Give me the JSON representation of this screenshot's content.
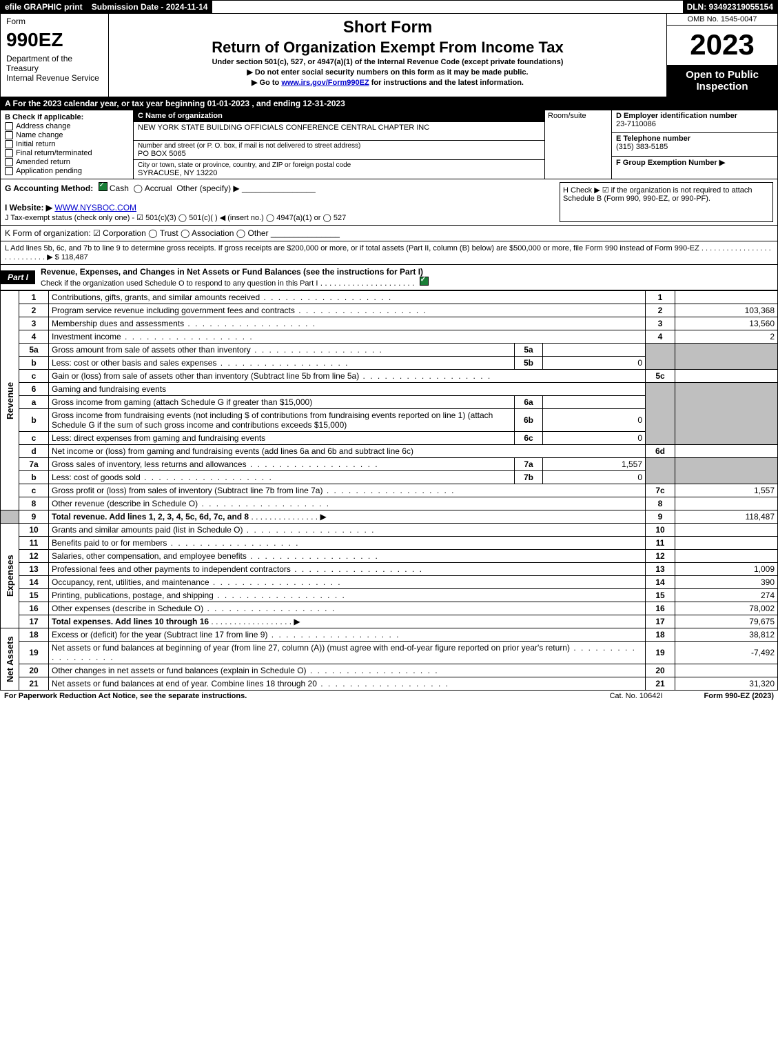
{
  "topbar": {
    "efile": "efile GRAPHIC print",
    "submission": "Submission Date - 2024-11-14",
    "dln": "DLN: 93492319055154"
  },
  "header": {
    "form_label": "Form",
    "form_number": "990EZ",
    "dept1": "Department of the Treasury",
    "dept2": "Internal Revenue Service",
    "short_form": "Short Form",
    "title": "Return of Organization Exempt From Income Tax",
    "sub1": "Under section 501(c), 527, or 4947(a)(1) of the Internal Revenue Code (except private foundations)",
    "sub2": "▶ Do not enter social security numbers on this form as it may be made public.",
    "sub3_prefix": "▶ Go to ",
    "sub3_link": "www.irs.gov/Form990EZ",
    "sub3_suffix": " for instructions and the latest information.",
    "omb": "OMB No. 1545-0047",
    "year": "2023",
    "open": "Open to Public Inspection"
  },
  "section_a": "A  For the 2023 calendar year, or tax year beginning 01-01-2023 , and ending 12-31-2023",
  "box_b": {
    "title": "B  Check if applicable:",
    "items": [
      "Address change",
      "Name change",
      "Initial return",
      "Final return/terminated",
      "Amended return",
      "Application pending"
    ]
  },
  "box_c": {
    "hdr": "C Name of organization",
    "name": "NEW YORK STATE BUILDING OFFICIALS CONFERENCE CENTRAL CHAPTER INC",
    "street_hdr": "Number and street (or P. O. box, if mail is not delivered to street address)",
    "street": "PO BOX 5065",
    "room_hdr": "Room/suite",
    "city_hdr": "City or town, state or province, country, and ZIP or foreign postal code",
    "city": "SYRACUSE, NY  13220"
  },
  "box_d": {
    "d_hdr": "D Employer identification number",
    "ein": "23-7110086",
    "e_hdr": "E Telephone number",
    "phone": "(315) 383-5185",
    "f_hdr": "F Group Exemption Number  ▶"
  },
  "g": {
    "label": "G Accounting Method:",
    "cash": "Cash",
    "accrual": "Accrual",
    "other": "Other (specify) ▶",
    "line": "________________"
  },
  "h": {
    "text": "H  Check ▶ ☑ if the organization is not required to attach Schedule B (Form 990, 990-EZ, or 990-PF)."
  },
  "i": {
    "label": "I Website: ▶",
    "value": "WWW.NYSBOC.COM"
  },
  "j": {
    "text": "J Tax-exempt status (check only one) - ☑ 501(c)(3) ◯ 501(c)(  ) ◀ (insert no.) ◯ 4947(a)(1) or ◯ 527"
  },
  "k": {
    "text": "K Form of organization:  ☑ Corporation  ◯ Trust  ◯ Association  ◯ Other",
    "line": "_______________"
  },
  "l": {
    "text": "L Add lines 5b, 6c, and 7b to line 9 to determine gross receipts. If gross receipts are $200,000 or more, or if total assets (Part II, column (B) below) are $500,000 or more, file Form 990 instead of Form 990-EZ  .  .  .  .  .  .  .  .  .  .  .  .  .  .  .  .  .  .  .  .  .  .  .  .  .  .  .  ▶ $ 118,487"
  },
  "part1": {
    "label": "Part I",
    "title": "Revenue, Expenses, and Changes in Net Assets or Fund Balances (see the instructions for Part I)",
    "check_text": "Check if the organization used Schedule O to respond to any question in this Part I"
  },
  "rev": {
    "side": "Revenue",
    "l1": "Contributions, gifts, grants, and similar amounts received",
    "l2": "Program service revenue including government fees and contracts",
    "v2": "103,368",
    "l3": "Membership dues and assessments",
    "v3": "13,560",
    "l4": "Investment income",
    "v4": "2",
    "l5a": "Gross amount from sale of assets other than inventory",
    "l5b": "Less: cost or other basis and sales expenses",
    "v5b": "0",
    "l5c": "Gain or (loss) from sale of assets other than inventory (Subtract line 5b from line 5a)",
    "l6": "Gaming and fundraising events",
    "l6a": "Gross income from gaming (attach Schedule G if greater than $15,000)",
    "l6b": "Gross income from fundraising events (not including $                  of contributions from fundraising events reported on line 1) (attach Schedule G if the sum of such gross income and contributions exceeds $15,000)",
    "v6b": "0",
    "l6c": "Less: direct expenses from gaming and fundraising events",
    "v6c": "0",
    "l6d": "Net income or (loss) from gaming and fundraising events (add lines 6a and 6b and subtract line 6c)",
    "l7a": "Gross sales of inventory, less returns and allowances",
    "v7a": "1,557",
    "l7b": "Less: cost of goods sold",
    "v7b": "0",
    "l7c": "Gross profit or (loss) from sales of inventory (Subtract line 7b from line 7a)",
    "v7c": "1,557",
    "l8": "Other revenue (describe in Schedule O)",
    "l9": "Total revenue. Add lines 1, 2, 3, 4, 5c, 6d, 7c, and 8",
    "v9": "118,487"
  },
  "exp": {
    "side": "Expenses",
    "l10": "Grants and similar amounts paid (list in Schedule O)",
    "l11": "Benefits paid to or for members",
    "l12": "Salaries, other compensation, and employee benefits",
    "l13": "Professional fees and other payments to independent contractors",
    "v13": "1,009",
    "l14": "Occupancy, rent, utilities, and maintenance",
    "v14": "390",
    "l15": "Printing, publications, postage, and shipping",
    "v15": "274",
    "l16": "Other expenses (describe in Schedule O)",
    "v16": "78,002",
    "l17": "Total expenses. Add lines 10 through 16",
    "v17": "79,675"
  },
  "na": {
    "side": "Net Assets",
    "l18": "Excess or (deficit) for the year (Subtract line 17 from line 9)",
    "v18": "38,812",
    "l19": "Net assets or fund balances at beginning of year (from line 27, column (A)) (must agree with end-of-year figure reported on prior year's return)",
    "v19": "-7,492",
    "l20": "Other changes in net assets or fund balances (explain in Schedule O)",
    "l21": "Net assets or fund balances at end of year. Combine lines 18 through 20",
    "v21": "31,320"
  },
  "footer": {
    "left": "For Paperwork Reduction Act Notice, see the separate instructions.",
    "mid": "Cat. No. 10642I",
    "right": "Form 990-EZ (2023)"
  },
  "labels": {
    "n1": "1",
    "n2": "2",
    "n3": "3",
    "n4": "4",
    "n5a": "5a",
    "n5b": "b",
    "n5c": "c",
    "n6": "6",
    "n6a": "a",
    "n6b": "b",
    "n6c": "c",
    "n6d": "d",
    "n7a": "7a",
    "n7b": "b",
    "n7c": "c",
    "n8": "8",
    "n9": "9",
    "n10": "10",
    "n11": "11",
    "n12": "12",
    "n13": "13",
    "n14": "14",
    "n15": "15",
    "n16": "16",
    "n17": "17",
    "n18": "18",
    "n19": "19",
    "n20": "20",
    "n21": "21",
    "m5a": "5a",
    "m5b": "5b",
    "m6a": "6a",
    "m6b": "6b",
    "m6c": "6c",
    "m7a": "7a",
    "m7b": "7b",
    "r1": "1",
    "r2": "2",
    "r3": "3",
    "r4": "4",
    "r5c": "5c",
    "r6d": "6d",
    "r7c": "7c",
    "r8": "8",
    "r9": "9",
    "r10": "10",
    "r11": "11",
    "r12": "12",
    "r13": "13",
    "r14": "14",
    "r15": "15",
    "r16": "16",
    "r17": "17",
    "r18": "18",
    "r19": "19",
    "r20": "20",
    "r21": "21"
  }
}
